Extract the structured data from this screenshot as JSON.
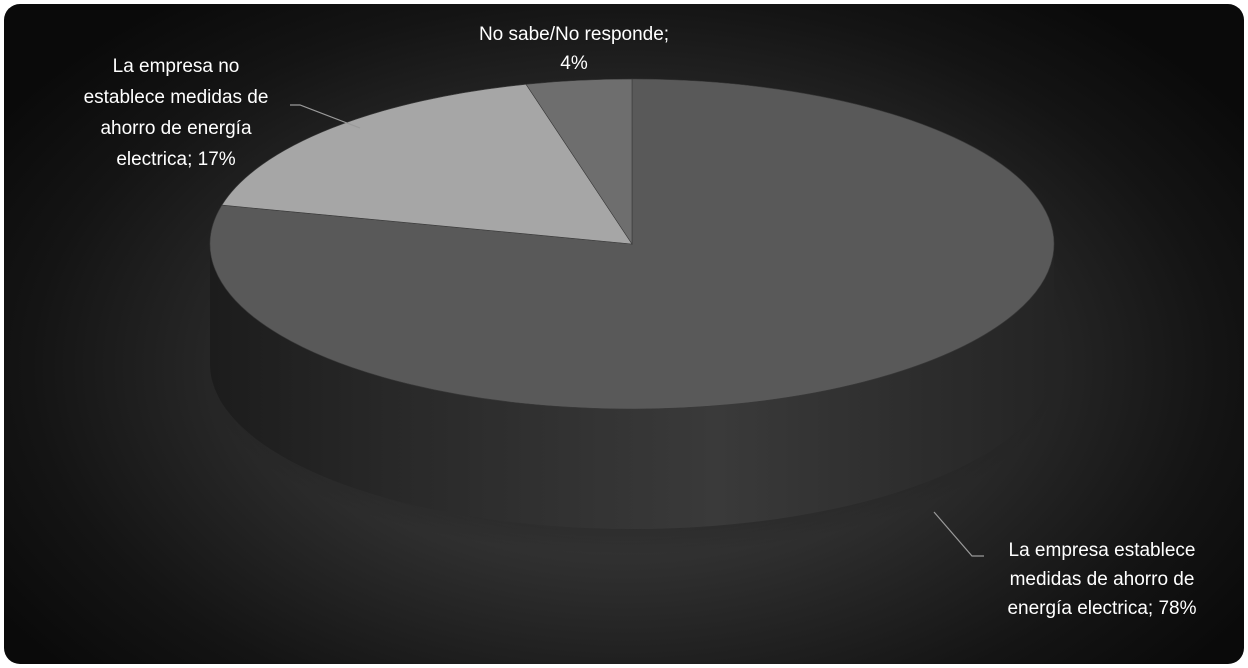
{
  "chart_data": {
    "type": "pie",
    "style": "3d",
    "title": "",
    "slices": [
      {
        "label_lines": [
          "La empresa establece",
          "medidas de ahorro de",
          "energía electrica; 78%"
        ],
        "category": "La empresa establece medidas de ahorro de energía electrica",
        "value": 78,
        "color": "#595959"
      },
      {
        "label_lines": [
          "La empresa no",
          "establece medidas de",
          "ahorro de energía",
          "electrica; 17%"
        ],
        "category": "La empresa no establece medidas de ahorro de energía electrica",
        "value": 17,
        "color": "#a6a6a6"
      },
      {
        "label_lines": [
          "No sabe/No responde;",
          "4%"
        ],
        "category": "No sabe/No responde",
        "value": 4,
        "color": "#6e6e6e"
      }
    ],
    "legend": "none",
    "data_labels": "outside with leader lines"
  }
}
